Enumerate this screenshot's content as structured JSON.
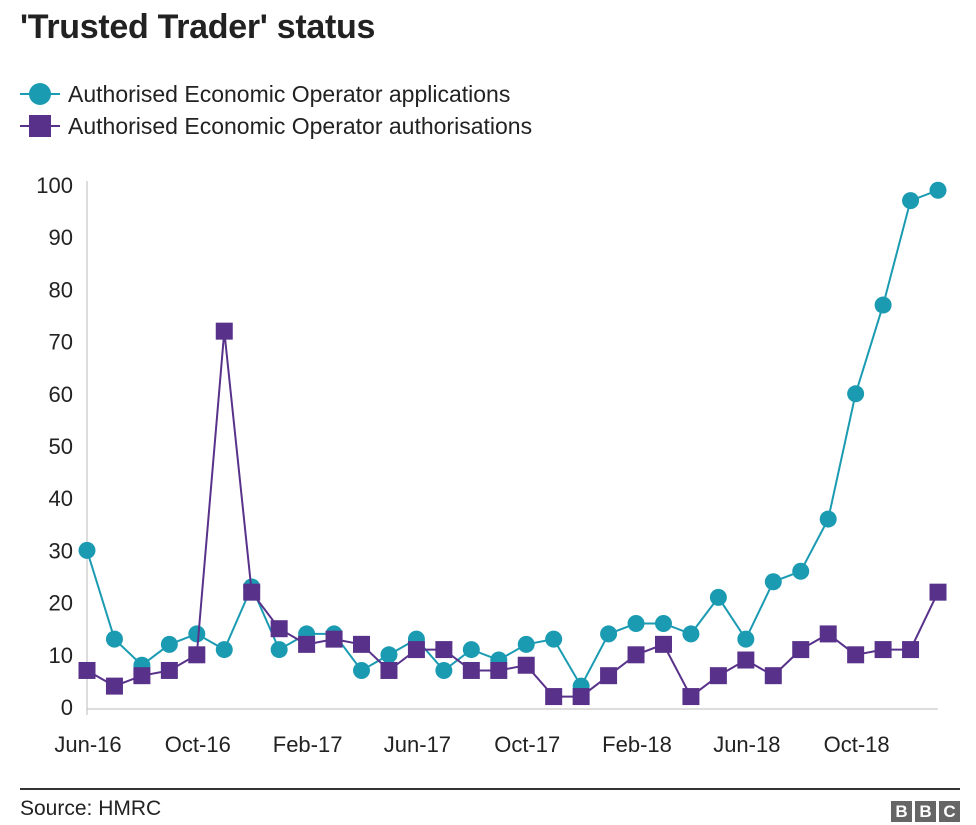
{
  "title": "'Trusted Trader' status",
  "source": "Source: HMRC",
  "logo_letters": [
    "B",
    "B",
    "C"
  ],
  "colors": {
    "applications": "#1b9bb2",
    "authorisations": "#58328a",
    "axis": "#bbbbbb",
    "text": "#222222"
  },
  "chart_data": {
    "type": "line",
    "x": [
      "Jun-16",
      "Jul-16",
      "Aug-16",
      "Sep-16",
      "Oct-16",
      "Nov-16",
      "Dec-16",
      "Jan-17",
      "Feb-17",
      "Mar-17",
      "Apr-17",
      "May-17",
      "Jun-17",
      "Jul-17",
      "Aug-17",
      "Sep-17",
      "Oct-17",
      "Nov-17",
      "Dec-17",
      "Jan-18",
      "Feb-18",
      "Mar-18",
      "Apr-18",
      "May-18",
      "Jun-18",
      "Jul-18",
      "Aug-18",
      "Sep-18",
      "Oct-18",
      "Nov-18",
      "Dec-18",
      "Jan-19"
    ],
    "xticks": [
      "Jun-16",
      "Oct-16",
      "Feb-17",
      "Jun-17",
      "Oct-17",
      "Feb-18",
      "Jun-18",
      "Oct-18"
    ],
    "yticks": [
      0,
      10,
      20,
      30,
      40,
      50,
      60,
      70,
      80,
      90,
      100
    ],
    "ylim": [
      0,
      100
    ],
    "grid": false,
    "legend_position": "top-left",
    "series": [
      {
        "name": "Authorised Economic Operator applications",
        "marker": "circle",
        "values": [
          30,
          13,
          8,
          12,
          14,
          11,
          23,
          11,
          14,
          14,
          7,
          10,
          13,
          7,
          11,
          9,
          12,
          13,
          4,
          14,
          16,
          16,
          14,
          21,
          13,
          24,
          26,
          36,
          60,
          77,
          97,
          99
        ]
      },
      {
        "name": "Authorised Economic Operator authorisations",
        "marker": "square",
        "values": [
          7,
          4,
          6,
          7,
          10,
          72,
          22,
          15,
          12,
          13,
          12,
          7,
          11,
          11,
          7,
          7,
          8,
          2,
          2,
          6,
          10,
          12,
          2,
          6,
          9,
          6,
          11,
          14,
          10,
          11,
          11,
          22
        ]
      }
    ]
  }
}
